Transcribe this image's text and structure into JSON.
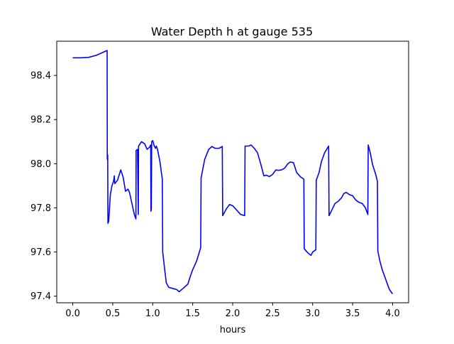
{
  "chart_data": {
    "type": "line",
    "title": "Water Depth h at gauge 535",
    "xlabel": "hours",
    "ylabel": "",
    "xlim": [
      -0.2,
      4.2
    ],
    "ylim": [
      97.37,
      98.555
    ],
    "x_ticks": [
      0.0,
      0.5,
      1.0,
      1.5,
      2.0,
      2.5,
      3.0,
      3.5,
      4.0
    ],
    "x_tick_labels": [
      "0.0",
      "0.5",
      "1.0",
      "1.5",
      "2.0",
      "2.5",
      "3.0",
      "3.5",
      "4.0"
    ],
    "y_ticks": [
      97.4,
      97.6,
      97.8,
      98.0,
      98.2,
      98.4
    ],
    "y_tick_labels": [
      "97.4",
      "97.6",
      "97.8",
      "98.0",
      "98.2",
      "98.4"
    ],
    "grid": false,
    "legend": "none",
    "series": [
      {
        "color": "#0000ff",
        "points": [
          [
            0.0,
            98.48
          ],
          [
            0.1,
            98.48
          ],
          [
            0.2,
            98.482
          ],
          [
            0.3,
            98.492
          ],
          [
            0.38,
            98.505
          ],
          [
            0.43,
            98.513
          ],
          [
            0.432,
            98.02
          ],
          [
            0.437,
            98.04
          ],
          [
            0.44,
            97.73
          ],
          [
            0.45,
            97.74
          ],
          [
            0.47,
            97.86
          ],
          [
            0.49,
            97.9
          ],
          [
            0.51,
            97.92
          ],
          [
            0.52,
            97.945
          ],
          [
            0.525,
            97.91
          ],
          [
            0.56,
            97.925
          ],
          [
            0.6,
            97.972
          ],
          [
            0.63,
            97.94
          ],
          [
            0.66,
            97.875
          ],
          [
            0.69,
            97.885
          ],
          [
            0.71,
            97.87
          ],
          [
            0.74,
            97.82
          ],
          [
            0.77,
            97.77
          ],
          [
            0.79,
            97.75
          ],
          [
            0.792,
            98.06
          ],
          [
            0.81,
            98.065
          ],
          [
            0.82,
            97.77
          ],
          [
            0.823,
            98.08
          ],
          [
            0.86,
            98.1
          ],
          [
            0.9,
            98.09
          ],
          [
            0.93,
            98.065
          ],
          [
            0.96,
            98.075
          ],
          [
            0.975,
            98.085
          ],
          [
            0.978,
            97.785
          ],
          [
            0.983,
            97.795
          ],
          [
            0.987,
            98.1
          ],
          [
            1.0,
            98.105
          ],
          [
            1.02,
            98.08
          ],
          [
            1.035,
            98.07
          ],
          [
            1.045,
            98.08
          ],
          [
            1.06,
            98.065
          ],
          [
            1.09,
            98.01
          ],
          [
            1.12,
            97.93
          ],
          [
            1.125,
            97.6
          ],
          [
            1.15,
            97.52
          ],
          [
            1.17,
            97.46
          ],
          [
            1.2,
            97.44
          ],
          [
            1.25,
            97.435
          ],
          [
            1.3,
            97.43
          ],
          [
            1.33,
            97.42
          ],
          [
            1.38,
            97.435
          ],
          [
            1.44,
            97.455
          ],
          [
            1.47,
            97.49
          ],
          [
            1.5,
            97.52
          ],
          [
            1.55,
            97.56
          ],
          [
            1.6,
            97.62
          ],
          [
            1.605,
            97.935
          ],
          [
            1.65,
            98.02
          ],
          [
            1.7,
            98.065
          ],
          [
            1.74,
            98.078
          ],
          [
            1.78,
            98.07
          ],
          [
            1.83,
            98.07
          ],
          [
            1.87,
            98.078
          ],
          [
            1.875,
            97.765
          ],
          [
            1.92,
            97.795
          ],
          [
            1.96,
            97.815
          ],
          [
            2.0,
            97.81
          ],
          [
            2.05,
            97.79
          ],
          [
            2.1,
            97.77
          ],
          [
            2.15,
            97.765
          ],
          [
            2.155,
            98.08
          ],
          [
            2.2,
            98.08
          ],
          [
            2.23,
            98.085
          ],
          [
            2.27,
            98.07
          ],
          [
            2.31,
            98.05
          ],
          [
            2.35,
            98.0
          ],
          [
            2.39,
            97.945
          ],
          [
            2.42,
            97.948
          ],
          [
            2.46,
            97.942
          ],
          [
            2.5,
            97.952
          ],
          [
            2.54,
            97.972
          ],
          [
            2.57,
            97.97
          ],
          [
            2.61,
            97.972
          ],
          [
            2.65,
            97.98
          ],
          [
            2.69,
            98.0
          ],
          [
            2.72,
            98.008
          ],
          [
            2.76,
            98.005
          ],
          [
            2.8,
            97.96
          ],
          [
            2.85,
            97.94
          ],
          [
            2.89,
            97.93
          ],
          [
            2.895,
            97.615
          ],
          [
            2.93,
            97.6
          ],
          [
            2.96,
            97.59
          ],
          [
            2.98,
            97.585
          ],
          [
            3.0,
            97.6
          ],
          [
            3.04,
            97.61
          ],
          [
            3.045,
            97.925
          ],
          [
            3.08,
            97.96
          ],
          [
            3.11,
            98.01
          ],
          [
            3.15,
            98.05
          ],
          [
            3.2,
            98.08
          ],
          [
            3.205,
            97.765
          ],
          [
            3.24,
            97.79
          ],
          [
            3.28,
            97.82
          ],
          [
            3.32,
            97.83
          ],
          [
            3.36,
            97.845
          ],
          [
            3.39,
            97.865
          ],
          [
            3.42,
            97.87
          ],
          [
            3.46,
            97.86
          ],
          [
            3.5,
            97.855
          ],
          [
            3.54,
            97.835
          ],
          [
            3.58,
            97.825
          ],
          [
            3.62,
            97.82
          ],
          [
            3.66,
            97.8
          ],
          [
            3.69,
            97.77
          ],
          [
            3.695,
            98.085
          ],
          [
            3.72,
            98.05
          ],
          [
            3.75,
            97.995
          ],
          [
            3.79,
            97.95
          ],
          [
            3.81,
            97.92
          ],
          [
            3.815,
            97.605
          ],
          [
            3.84,
            97.56
          ],
          [
            3.87,
            97.52
          ],
          [
            3.9,
            97.49
          ],
          [
            3.93,
            97.46
          ],
          [
            3.96,
            97.43
          ],
          [
            4.0,
            97.41
          ]
        ]
      }
    ]
  }
}
